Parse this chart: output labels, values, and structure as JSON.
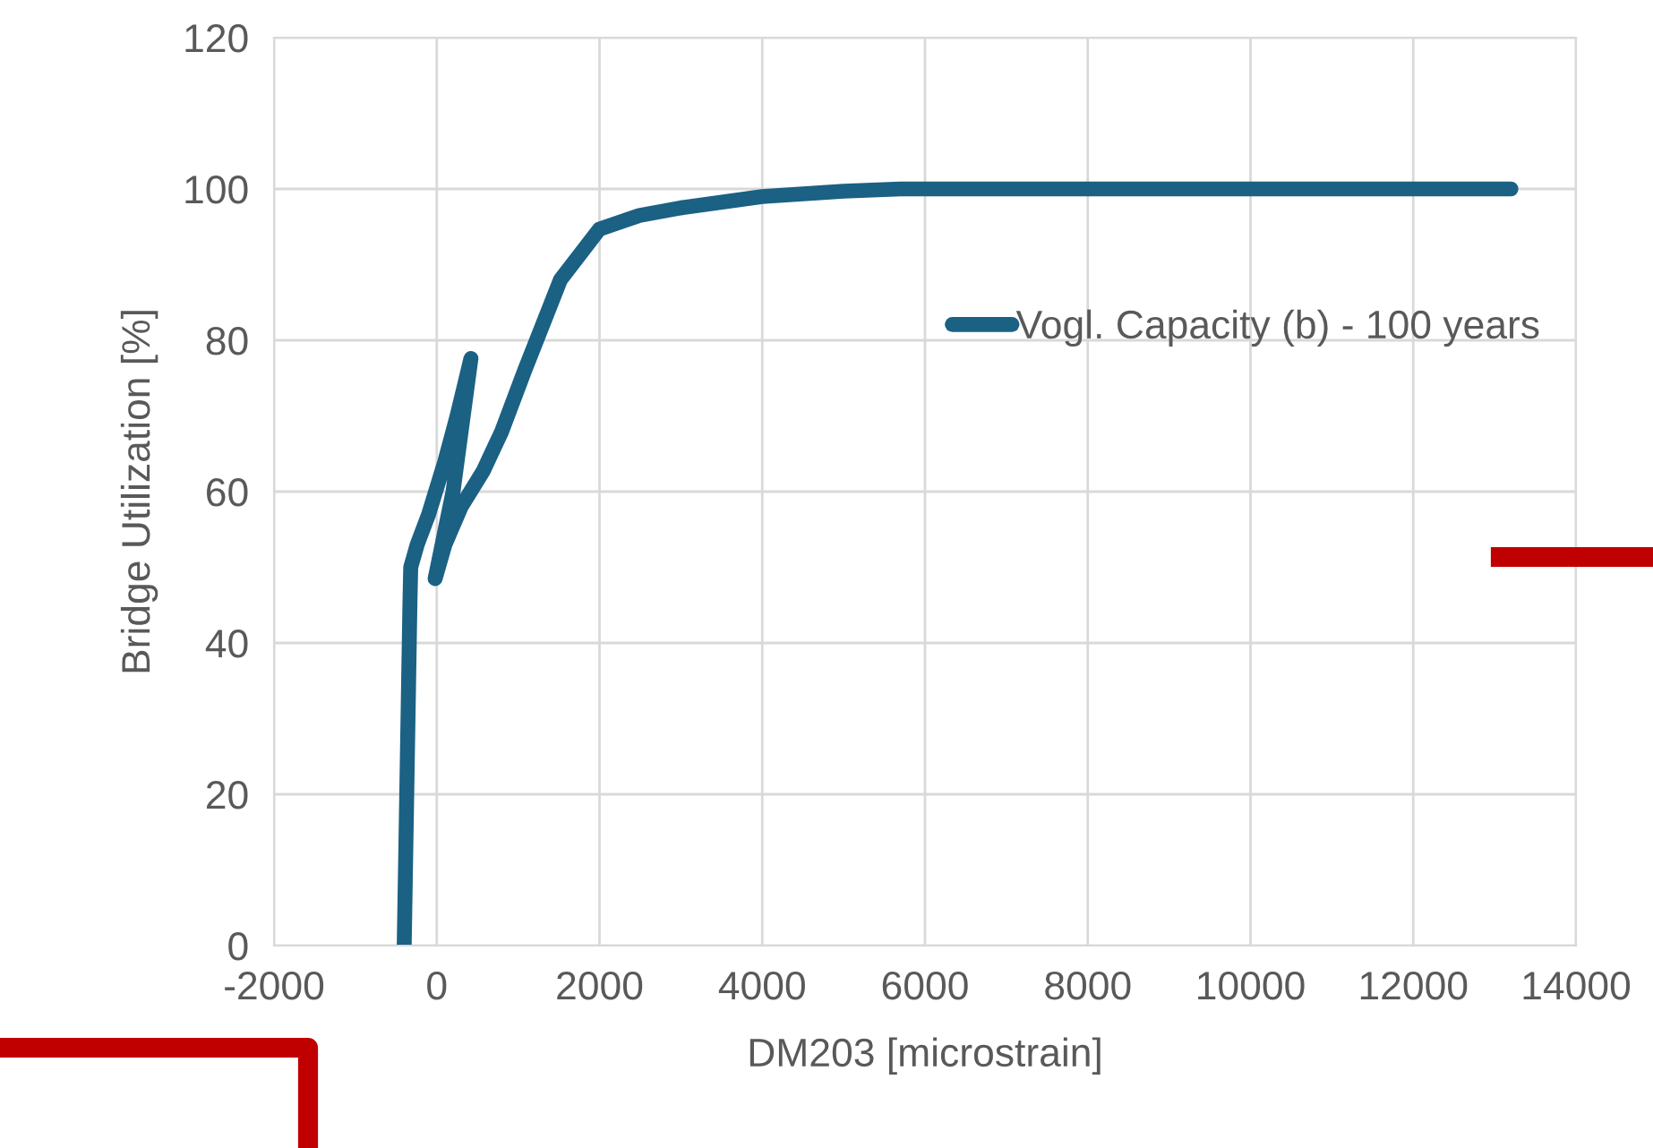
{
  "chart_data": {
    "type": "line",
    "xlabel": "DM203 [microstrain]",
    "ylabel": "Bridge Utilization [%]",
    "series": [
      {
        "name": "Vogl. Capacity (b) - 100 years",
        "color": "#1a6184",
        "x": [
          -400,
          -330,
          -320,
          -240,
          -100,
          100,
          250,
          420,
          200,
          -20,
          100,
          300,
          570,
          800,
          1080,
          1300,
          1520,
          2000,
          2490,
          3000,
          4000,
          5000,
          5700,
          13200
        ],
        "values": [
          0,
          45,
          50,
          53,
          57,
          64,
          70,
          77.6,
          60,
          48.5,
          53,
          58,
          62.7,
          68,
          76,
          82,
          88,
          94.7,
          96.5,
          97.5,
          99,
          99.7,
          100,
          100
        ]
      }
    ],
    "xlim": [
      -2000,
      14000
    ],
    "xticks": [
      -2000,
      0,
      2000,
      4000,
      6000,
      8000,
      10000,
      12000,
      14000
    ],
    "ylim": [
      0,
      120
    ],
    "yticks": [
      0,
      20,
      40,
      60,
      80,
      100,
      120
    ],
    "grid": true,
    "legend": "top right",
    "marker": "none",
    "line_style": "solid"
  }
}
